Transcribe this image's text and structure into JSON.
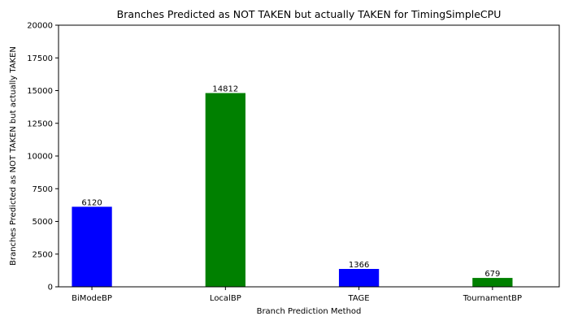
{
  "chart_data": {
    "type": "bar",
    "title": "Branches Predicted as NOT TAKEN but actually TAKEN for TimingSimpleCPU",
    "xlabel": "Branch Prediction Method",
    "ylabel": "Branches Predicted as NOT TAKEN but actually TAKEN",
    "categories": [
      "BiModeBP",
      "LocalBP",
      "TAGE",
      "TournamentBP"
    ],
    "values": [
      6120,
      14812,
      1366,
      679
    ],
    "data_labels": [
      "6120",
      "14812",
      "1366",
      "679"
    ],
    "bar_colors": [
      "#0000ff",
      "#008000",
      "#0000ff",
      "#008000"
    ],
    "ylim": [
      0,
      20000
    ],
    "yticks": [
      0,
      2500,
      5000,
      7500,
      10000,
      12500,
      15000,
      17500,
      20000
    ],
    "ytick_labels": [
      "0",
      "2500",
      "5000",
      "7500",
      "10000",
      "12500",
      "15000",
      "17500",
      "20000"
    ],
    "grid": false,
    "legend": "none"
  }
}
